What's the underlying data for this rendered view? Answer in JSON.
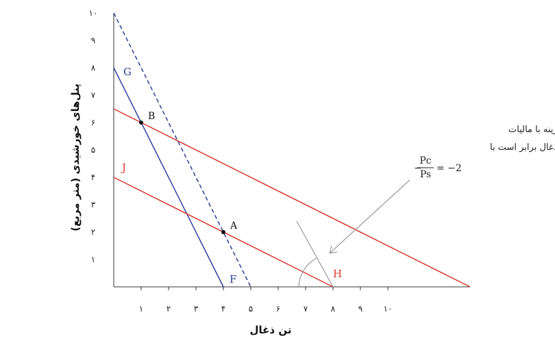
{
  "chart_data": {
    "type": "line",
    "xlabel": "تن ذغال",
    "ylabel": "پنل‌های خورشیدی (متر مربع)",
    "xlim": [
      0,
      13
    ],
    "ylim": [
      0,
      10
    ],
    "x_ticks": [
      1,
      2,
      3,
      4,
      5,
      6,
      7,
      8,
      9,
      10
    ],
    "x_tick_labels": [
      "۱",
      "۲",
      "۳",
      "۴",
      "۵",
      "۶",
      "۷",
      "۸",
      "۹",
      "۱۰"
    ],
    "y_ticks": [
      1,
      2,
      3,
      4,
      5,
      6,
      7,
      8,
      9,
      10
    ],
    "y_tick_labels": [
      "۱",
      "۲",
      "۳",
      "۴",
      "۵",
      "۶",
      "۷",
      "۸",
      "۹",
      "۱۰"
    ],
    "grid": false,
    "series": [
      {
        "name": "G",
        "color": "#2b3f9e",
        "style": "solid",
        "x": [
          0,
          4
        ],
        "y": [
          8,
          0
        ]
      },
      {
        "name": "F",
        "color": "#2b3f9e",
        "style": "solid",
        "x": [
          0,
          4
        ],
        "y": [
          8,
          0
        ]
      },
      {
        "name": "",
        "color": "#2b3f9e",
        "style": "dashed",
        "x": [
          0,
          5
        ],
        "y": [
          10,
          0
        ]
      },
      {
        "name": "J",
        "color": "#d93a2b",
        "style": "solid",
        "x": [
          0,
          8
        ],
        "y": [
          4,
          0
        ]
      },
      {
        "name": "H",
        "color": "#d93a2b",
        "style": "solid",
        "x": [
          8
        ],
        "y": [
          0
        ]
      },
      {
        "name": "",
        "color": "#d93a2b",
        "style": "solid",
        "x": [
          0,
          13
        ],
        "y": [
          6.5,
          0
        ]
      }
    ],
    "points": [
      {
        "label": "B",
        "x": 1,
        "y": 6
      },
      {
        "label": "A",
        "x": 4,
        "y": 2
      }
    ],
    "annotation": {
      "line1": "خط برابری هزینه با مالیات",
      "line2": "روی ذغال برابر است با",
      "minus": "−",
      "numerator": "Pc",
      "denominator": "Ps",
      "equals": "= −2"
    },
    "colors": {
      "blue": "#2b3f9e",
      "red": "#d93a2b",
      "gray": "#999999",
      "axis": "#333333"
    }
  }
}
